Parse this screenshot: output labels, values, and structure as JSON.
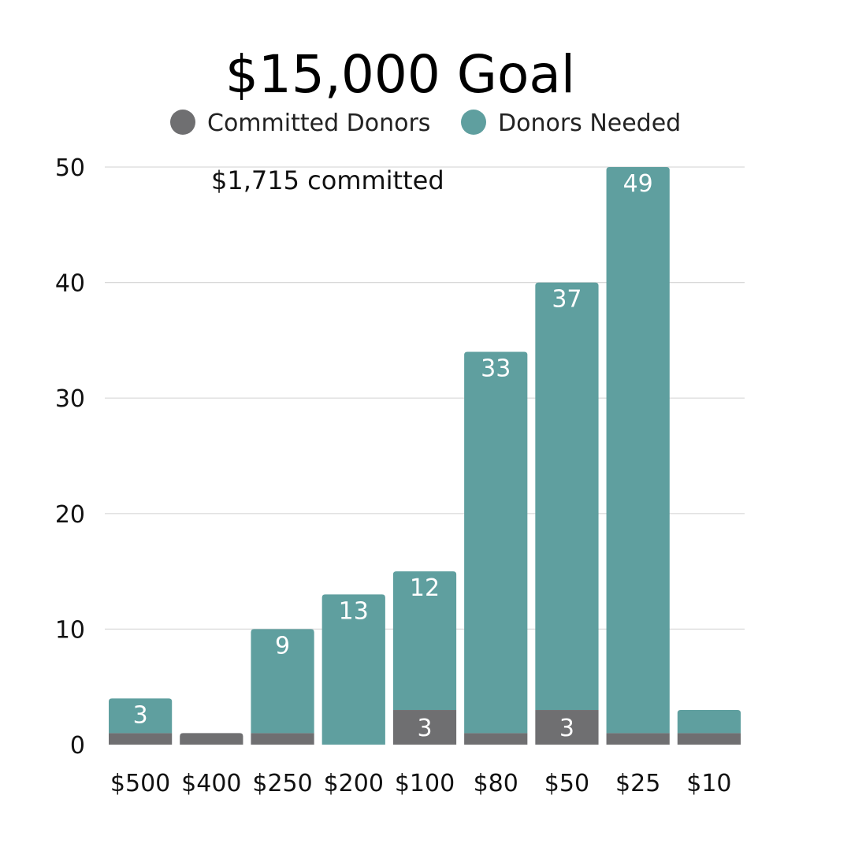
{
  "chart_data": {
    "type": "bar",
    "stacked": true,
    "title": "$15,000 Goal",
    "annotation": "$1,715 committed",
    "categories": [
      "$500",
      "$400",
      "$250",
      "$200",
      "$100",
      "$80",
      "$50",
      "$25",
      "$10"
    ],
    "series": [
      {
        "name": "Committed Donors",
        "color": "#6f6f71",
        "values": [
          1,
          1,
          1,
          0,
          3,
          1,
          3,
          1,
          1
        ],
        "labels": [
          "",
          "",
          "",
          "",
          "3",
          "",
          "3",
          "",
          ""
        ]
      },
      {
        "name": "Donors Needed",
        "color": "#5f9f9f",
        "values": [
          3,
          0,
          9,
          13,
          12,
          33,
          37,
          49,
          2
        ],
        "labels": [
          "3",
          "",
          "9",
          "13",
          "12",
          "33",
          "37",
          "49",
          ""
        ]
      }
    ],
    "ylim": [
      0,
      50
    ],
    "yticks": [
      0,
      10,
      20,
      30,
      40,
      50
    ],
    "grid": true,
    "legend_position": "top"
  }
}
